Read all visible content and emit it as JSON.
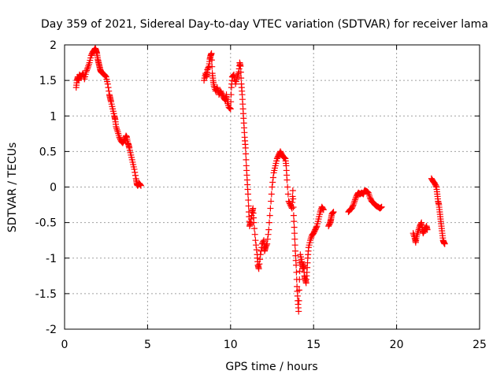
{
  "chart_data": {
    "type": "scatter",
    "title": "Day 359 of 2021, Sidereal Day-to-day VTEC variation (SDTVAR) for receiver lama",
    "xlabel": "GPS time / hours",
    "ylabel": "SDTVAR / TECUs",
    "xlim": [
      0,
      25
    ],
    "ylim": [
      -2,
      2
    ],
    "xticks": [
      0,
      5,
      10,
      15,
      20,
      25
    ],
    "yticks": [
      -2,
      -1.5,
      -1,
      -0.5,
      0,
      0.5,
      1,
      1.5,
      2
    ],
    "xtick_labels": [
      "0",
      "5",
      "10",
      "15",
      "20",
      "25"
    ],
    "ytick_labels": [
      "-2",
      "-1.5",
      "-1",
      "-0.5",
      "0",
      "0.5",
      "1",
      "1.5",
      "2"
    ],
    "grid": true,
    "marker": "+",
    "series_color": "#ff0000",
    "series": [
      {
        "name": "SDTVAR",
        "segments": [
          [
            [
              0.7,
              1.4
            ],
            [
              0.75,
              1.5
            ],
            [
              0.8,
              1.55
            ],
            [
              0.85,
              1.5
            ],
            [
              0.9,
              1.58
            ],
            [
              1.0,
              1.55
            ],
            [
              1.1,
              1.6
            ],
            [
              1.2,
              1.52
            ],
            [
              1.3,
              1.62
            ],
            [
              1.4,
              1.68
            ],
            [
              1.5,
              1.75
            ],
            [
              1.6,
              1.85
            ],
            [
              1.7,
              1.9
            ],
            [
              1.8,
              1.93
            ],
            [
              1.85,
              1.95
            ],
            [
              1.9,
              1.92
            ],
            [
              1.95,
              1.88
            ],
            [
              2.0,
              1.8
            ],
            [
              2.05,
              1.75
            ],
            [
              2.1,
              1.7
            ],
            [
              2.15,
              1.65
            ],
            [
              2.2,
              1.62
            ],
            [
              2.3,
              1.6
            ],
            [
              2.4,
              1.58
            ],
            [
              2.5,
              1.55
            ],
            [
              2.6,
              1.45
            ],
            [
              2.7,
              1.3
            ],
            [
              2.75,
              1.25
            ],
            [
              2.8,
              1.2
            ],
            [
              2.9,
              1.1
            ],
            [
              3.0,
              1.0
            ],
            [
              3.05,
              0.95
            ],
            [
              3.1,
              0.85
            ],
            [
              3.2,
              0.78
            ],
            [
              3.3,
              0.7
            ],
            [
              3.4,
              0.65
            ],
            [
              3.5,
              0.62
            ],
            [
              3.6,
              0.66
            ],
            [
              3.7,
              0.72
            ],
            [
              3.75,
              0.7
            ],
            [
              3.8,
              0.62
            ],
            [
              3.85,
              0.6
            ],
            [
              3.9,
              0.55
            ],
            [
              4.0,
              0.45
            ],
            [
              4.1,
              0.35
            ],
            [
              4.2,
              0.25
            ],
            [
              4.3,
              0.12
            ],
            [
              4.35,
              0.05
            ],
            [
              4.4,
              0.02
            ],
            [
              4.5,
              0.05
            ],
            [
              4.6,
              0.02
            ]
          ],
          [
            [
              8.4,
              1.5
            ],
            [
              8.5,
              1.6
            ],
            [
              8.55,
              1.55
            ],
            [
              8.6,
              1.65
            ],
            [
              8.7,
              1.7
            ],
            [
              8.75,
              1.8
            ],
            [
              8.8,
              1.85
            ],
            [
              8.85,
              1.88
            ],
            [
              8.9,
              1.6
            ],
            [
              8.95,
              1.5
            ],
            [
              9.0,
              1.42
            ],
            [
              9.1,
              1.35
            ],
            [
              9.2,
              1.4
            ],
            [
              9.3,
              1.3
            ],
            [
              9.4,
              1.35
            ],
            [
              9.5,
              1.3
            ],
            [
              9.6,
              1.25
            ],
            [
              9.7,
              1.22
            ],
            [
              9.75,
              1.3
            ],
            [
              9.8,
              1.2
            ],
            [
              9.9,
              1.12
            ],
            [
              10.0,
              1.1
            ],
            [
              10.05,
              1.4
            ],
            [
              10.1,
              1.55
            ],
            [
              10.2,
              1.58
            ],
            [
              10.3,
              1.45
            ],
            [
              10.4,
              1.55
            ],
            [
              10.5,
              1.62
            ],
            [
              10.55,
              1.75
            ],
            [
              10.6,
              1.7
            ],
            [
              10.65,
              1.45
            ],
            [
              10.7,
              1.3
            ],
            [
              10.75,
              1.1
            ],
            [
              10.8,
              0.9
            ],
            [
              10.85,
              0.7
            ],
            [
              10.9,
              0.55
            ],
            [
              10.95,
              0.3
            ],
            [
              11.0,
              0.1
            ],
            [
              11.05,
              -0.1
            ],
            [
              11.1,
              -0.35
            ],
            [
              11.15,
              -0.55
            ],
            [
              11.2,
              -0.5
            ],
            [
              11.3,
              -0.35
            ],
            [
              11.35,
              -0.3
            ],
            [
              11.4,
              -0.5
            ],
            [
              11.5,
              -0.75
            ],
            [
              11.6,
              -0.95
            ],
            [
              11.65,
              -1.1
            ],
            [
              11.7,
              -1.15
            ],
            [
              11.8,
              -0.95
            ],
            [
              11.9,
              -0.8
            ],
            [
              12.0,
              -0.75
            ],
            [
              12.05,
              -0.9
            ],
            [
              12.1,
              -0.85
            ],
            [
              12.2,
              -0.8
            ],
            [
              12.3,
              -0.6
            ],
            [
              12.4,
              -0.3
            ],
            [
              12.5,
              0.0
            ],
            [
              12.6,
              0.2
            ],
            [
              12.7,
              0.3
            ],
            [
              12.8,
              0.4
            ],
            [
              12.9,
              0.45
            ],
            [
              13.0,
              0.5
            ],
            [
              13.1,
              0.45
            ],
            [
              13.2,
              0.42
            ],
            [
              13.3,
              0.4
            ],
            [
              13.35,
              0.3
            ],
            [
              13.4,
              0.1
            ],
            [
              13.5,
              -0.2
            ],
            [
              13.6,
              -0.25
            ],
            [
              13.7,
              -0.3
            ],
            [
              13.75,
              -0.05
            ],
            [
              13.8,
              -0.4
            ],
            [
              13.85,
              -0.65
            ],
            [
              13.9,
              -0.9
            ],
            [
              13.95,
              -1.1
            ],
            [
              14.0,
              -1.4
            ],
            [
              14.05,
              -1.6
            ],
            [
              14.1,
              -1.75
            ],
            [
              14.15,
              -1.3
            ],
            [
              14.2,
              -0.95
            ],
            [
              14.3,
              -1.05
            ],
            [
              14.35,
              -1.15
            ],
            [
              14.4,
              -1.1
            ],
            [
              14.45,
              -1.25
            ],
            [
              14.5,
              -1.3
            ],
            [
              14.55,
              -1.35
            ],
            [
              14.6,
              -1.2
            ],
            [
              14.65,
              -1.0
            ],
            [
              14.7,
              -0.85
            ],
            [
              14.8,
              -0.75
            ],
            [
              14.9,
              -0.68
            ],
            [
              15.0,
              -0.65
            ],
            [
              15.1,
              -0.6
            ],
            [
              15.2,
              -0.55
            ],
            [
              15.3,
              -0.45
            ],
            [
              15.4,
              -0.35
            ],
            [
              15.5,
              -0.28
            ],
            [
              15.6,
              -0.32
            ]
          ],
          [
            [
              15.9,
              -0.55
            ],
            [
              16.0,
              -0.5
            ],
            [
              16.05,
              -0.45
            ],
            [
              16.1,
              -0.38
            ],
            [
              16.2,
              -0.35
            ]
          ],
          [
            [
              17.1,
              -0.35
            ],
            [
              17.2,
              -0.32
            ],
            [
              17.3,
              -0.3
            ],
            [
              17.4,
              -0.25
            ],
            [
              17.5,
              -0.18
            ],
            [
              17.6,
              -0.12
            ],
            [
              17.7,
              -0.08
            ],
            [
              17.8,
              -0.1
            ],
            [
              17.9,
              -0.08
            ],
            [
              18.0,
              -0.1
            ],
            [
              18.05,
              -0.06
            ],
            [
              18.1,
              -0.05
            ],
            [
              18.2,
              -0.06
            ],
            [
              18.3,
              -0.08
            ],
            [
              18.4,
              -0.15
            ],
            [
              18.5,
              -0.2
            ],
            [
              18.6,
              -0.22
            ],
            [
              18.7,
              -0.25
            ],
            [
              18.8,
              -0.27
            ],
            [
              18.9,
              -0.28
            ],
            [
              19.0,
              -0.3
            ],
            [
              19.1,
              -0.28
            ]
          ],
          [
            [
              21.0,
              -0.65
            ],
            [
              21.1,
              -0.72
            ],
            [
              21.15,
              -0.78
            ],
            [
              21.2,
              -0.7
            ],
            [
              21.3,
              -0.62
            ],
            [
              21.4,
              -0.55
            ],
            [
              21.5,
              -0.5
            ],
            [
              21.55,
              -0.6
            ],
            [
              21.6,
              -0.65
            ],
            [
              21.7,
              -0.6
            ],
            [
              21.8,
              -0.55
            ],
            [
              21.85,
              -0.6
            ]
          ],
          [
            [
              22.1,
              0.12
            ],
            [
              22.2,
              0.08
            ],
            [
              22.3,
              0.05
            ],
            [
              22.4,
              0.0
            ],
            [
              22.45,
              -0.1
            ],
            [
              22.5,
              -0.2
            ],
            [
              22.55,
              -0.25
            ],
            [
              22.6,
              -0.35
            ],
            [
              22.65,
              -0.45
            ],
            [
              22.7,
              -0.55
            ],
            [
              22.75,
              -0.65
            ],
            [
              22.8,
              -0.75
            ],
            [
              22.85,
              -0.78
            ],
            [
              22.9,
              -0.8
            ]
          ]
        ]
      }
    ]
  }
}
